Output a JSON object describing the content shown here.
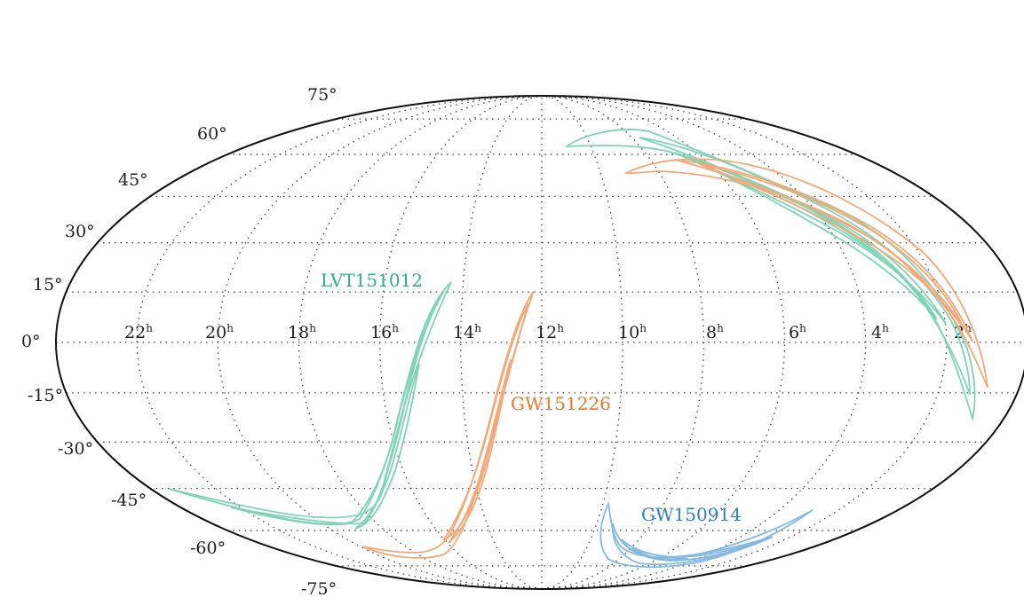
{
  "map": {
    "projection": "mollweide",
    "grid": true,
    "dec_labels": [
      "75°",
      "60°",
      "45°",
      "30°",
      "15°",
      "0°",
      "-15°",
      "-30°",
      "-45°",
      "-60°",
      "-75°"
    ],
    "dec_values": [
      75,
      60,
      45,
      30,
      15,
      0,
      -15,
      -30,
      -45,
      -60,
      -75
    ],
    "ra_labels": [
      {
        "num": "22",
        "sup": "h"
      },
      {
        "num": "20",
        "sup": "h"
      },
      {
        "num": "18",
        "sup": "h"
      },
      {
        "num": "16",
        "sup": "h"
      },
      {
        "num": "14",
        "sup": "h"
      },
      {
        "num": "12",
        "sup": "h"
      },
      {
        "num": "10",
        "sup": "h"
      },
      {
        "num": "8",
        "sup": "h"
      },
      {
        "num": "6",
        "sup": "h"
      },
      {
        "num": "4",
        "sup": "h"
      },
      {
        "num": "2",
        "sup": "h"
      }
    ],
    "events": [
      {
        "name": "LVT151012",
        "color": "#2bb08a"
      },
      {
        "name": "GW151226",
        "color": "#e8782a"
      },
      {
        "name": "GW150914",
        "color": "#2f7fbf"
      }
    ]
  }
}
